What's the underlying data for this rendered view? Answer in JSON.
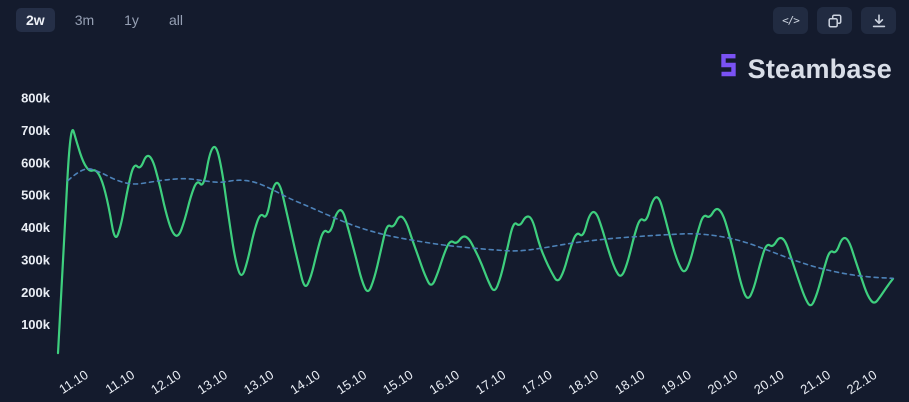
{
  "toolbar": {
    "ranges": [
      {
        "label": "2w",
        "active": true
      },
      {
        "label": "3m",
        "active": false
      },
      {
        "label": "1y",
        "active": false
      },
      {
        "label": "all",
        "active": false
      }
    ],
    "actions": [
      {
        "name": "embed-code",
        "glyph": "</>"
      },
      {
        "name": "copy"
      },
      {
        "name": "download"
      }
    ]
  },
  "brand": {
    "name": "Steambase",
    "accent": "#7A52F4"
  },
  "colors": {
    "background": "#141B2D",
    "line_green": "#3ECF7E",
    "trend_blue": "#4D82B8",
    "axis_text": "#E9EDF4"
  },
  "chart_data": {
    "type": "line",
    "unit": "k",
    "y_max": 800,
    "ylim": [
      0,
      800
    ],
    "grid": false,
    "legend": false,
    "axis_color": "#E9EDF4",
    "y_ticks": [
      {
        "value": 800,
        "label": "800k"
      },
      {
        "value": 700,
        "label": "700k"
      },
      {
        "value": 600,
        "label": "600k"
      },
      {
        "value": 500,
        "label": "500k"
      },
      {
        "value": 400,
        "label": "400k"
      },
      {
        "value": 300,
        "label": "300k"
      },
      {
        "value": 200,
        "label": "200k"
      },
      {
        "value": 100,
        "label": "100k"
      }
    ],
    "x_ticks": [
      "11.10",
      "11.10",
      "12.10",
      "13.10",
      "13.10",
      "14.10",
      "15.10",
      "15.10",
      "16.10",
      "17.10",
      "17.10",
      "18.10",
      "18.10",
      "19.10",
      "20.10",
      "20.10",
      "21.10",
      "22.10"
    ],
    "series": [
      {
        "name": "concurrent-players",
        "color": "#3ECF7E",
        "style": "solid",
        "values": [
          12,
          380,
          730,
          660,
          600,
          572,
          580,
          545,
          468,
          352,
          408,
          520,
          600,
          578,
          628,
          610,
          538,
          450,
          385,
          368,
          420,
          498,
          548,
          522,
          635,
          658,
          570,
          428,
          300,
          238,
          298,
          390,
          447,
          424,
          532,
          542,
          460,
          372,
          288,
          206,
          246,
          330,
          397,
          378,
          448,
          458,
          388,
          315,
          236,
          192,
          242,
          326,
          412,
          398,
          440,
          422,
          362,
          308,
          252,
          213,
          256,
          318,
          362,
          348,
          376,
          366,
          328,
          286,
          234,
          196,
          246,
          332,
          420,
          402,
          438,
          428,
          352,
          302,
          262,
          228,
          266,
          338,
          388,
          368,
          442,
          452,
          398,
          330,
          272,
          242,
          288,
          368,
          432,
          415,
          488,
          498,
          428,
          352,
          292,
          255,
          298,
          378,
          442,
          428,
          462,
          448,
          386,
          308,
          222,
          172,
          210,
          290,
          352,
          338,
          372,
          360,
          300,
          242,
          186,
          150,
          194,
          268,
          332,
          318,
          372,
          362,
          302,
          244,
          188,
          162,
          186,
          216,
          242
        ]
      },
      {
        "name": "trend-average",
        "color": "#4D82B8",
        "style": "dashed",
        "x": [
          0.012,
          0.03,
          0.05,
          0.07,
          0.09,
          0.11,
          0.13,
          0.155,
          0.175,
          0.195,
          0.215,
          0.235,
          0.255,
          0.275,
          0.3,
          0.32,
          0.34,
          0.36,
          0.38,
          0.4,
          0.43,
          0.46,
          0.49,
          0.52,
          0.55,
          0.58,
          0.61,
          0.64,
          0.67,
          0.7,
          0.73,
          0.76,
          0.79,
          0.82,
          0.85,
          0.88,
          0.91,
          0.94,
          0.97,
          1.0
        ],
        "values": [
          545,
          588,
          572,
          545,
          532,
          540,
          548,
          552,
          544,
          538,
          548,
          542,
          520,
          492,
          465,
          442,
          420,
          400,
          385,
          372,
          358,
          346,
          338,
          331,
          326,
          336,
          350,
          360,
          368,
          373,
          378,
          382,
          375,
          358,
          330,
          300,
          275,
          258,
          247,
          243
        ]
      }
    ]
  }
}
